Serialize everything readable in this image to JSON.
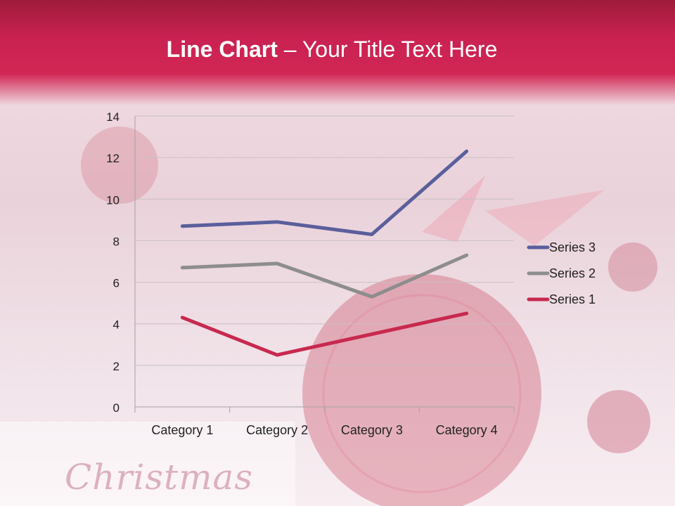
{
  "slide": {
    "title_bold": "Line Chart",
    "title_rest": " – Your Title Text Here",
    "watermark": "Christmas"
  },
  "chart_data": {
    "type": "line",
    "title": "",
    "xlabel": "",
    "ylabel": "",
    "categories": [
      "Category 1",
      "Category 2",
      "Category 3",
      "Category 4"
    ],
    "ylim": [
      0,
      14
    ],
    "yticks": [
      0,
      2,
      4,
      6,
      8,
      10,
      12,
      14
    ],
    "grid": true,
    "legend_position": "right",
    "series": [
      {
        "name": "Series 1",
        "values": [
          4.3,
          2.5,
          3.5,
          4.5
        ],
        "color": "#c8294f"
      },
      {
        "name": "Series 2",
        "values": [
          6.7,
          6.9,
          5.3,
          7.3
        ],
        "color": "#8d8d8d"
      },
      {
        "name": "Series 3",
        "values": [
          8.7,
          8.9,
          8.3,
          12.3
        ],
        "color": "#5a5f9c"
      }
    ]
  }
}
